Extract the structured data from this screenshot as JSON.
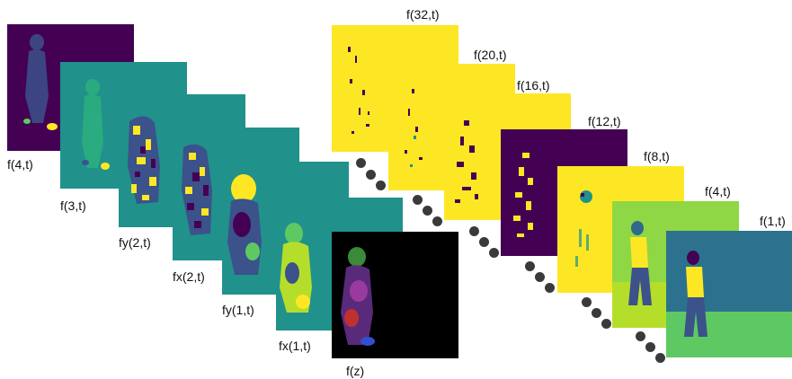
{
  "colors": {
    "purple": "#440154",
    "teal": "#21918c",
    "yellow": "#fde725",
    "green": "#5ec962",
    "blue": "#3b528b",
    "black": "#000000",
    "dot": "#3a3a3a"
  },
  "left_stack": {
    "f4t": "f(4,t)",
    "f3t": "f(3,t)",
    "fy2t": "fy(2,t)",
    "fx2t": "fx(2,t)",
    "fy1t": "fy(1,t)",
    "fx1t": "fx(1,t)",
    "fz": "f(z)"
  },
  "right_stack": {
    "f32t": "f(32,t)",
    "f20t": "f(20,t)",
    "f16t": "f(16,t)",
    "f12t": "f(12,t)",
    "f8t": "f(8,t)",
    "f4t": "f(4,t)",
    "f1t": "f(1,t)"
  }
}
